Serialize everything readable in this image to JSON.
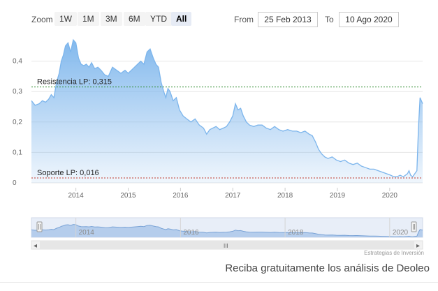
{
  "toolbar": {
    "zoom_label": "Zoom",
    "buttons": [
      {
        "label": "1W",
        "active": false
      },
      {
        "label": "1M",
        "active": false
      },
      {
        "label": "3M",
        "active": false
      },
      {
        "label": "6M",
        "active": false
      },
      {
        "label": "YTD",
        "active": false
      },
      {
        "label": "All",
        "active": true
      }
    ],
    "from_label": "From",
    "from_value": "25 Feb 2013",
    "to_label": "To",
    "to_value": "10 Ago 2020"
  },
  "chart_data": {
    "type": "area",
    "title": "",
    "xlabel": "",
    "ylabel": "",
    "xlim": [
      2013.15,
      2020.63
    ],
    "ylim": [
      0,
      0.5
    ],
    "x_ticks": [
      "2014",
      "2015",
      "2016",
      "2017",
      "2018",
      "2019",
      "2020"
    ],
    "y_ticks": [
      "0",
      "0,1",
      "0,2",
      "0,3",
      "0,4"
    ],
    "grid": true,
    "series": [
      {
        "name": "",
        "color": "#7cb5ec",
        "x": [
          2013.15,
          2013.22,
          2013.3,
          2013.36,
          2013.42,
          2013.48,
          2013.53,
          2013.58,
          2013.63,
          2013.68,
          2013.72,
          2013.76,
          2013.8,
          2013.85,
          2013.9,
          2013.95,
          2014.0,
          2014.05,
          2014.1,
          2014.15,
          2014.2,
          2014.25,
          2014.3,
          2014.36,
          2014.42,
          2014.48,
          2014.55,
          2014.62,
          2014.7,
          2014.78,
          2014.86,
          2014.94,
          2015.0,
          2015.06,
          2015.12,
          2015.18,
          2015.24,
          2015.3,
          2015.36,
          2015.42,
          2015.48,
          2015.53,
          2015.58,
          2015.63,
          2015.68,
          2015.72,
          2015.76,
          2015.8,
          2015.86,
          2015.92,
          2015.98,
          2016.05,
          2016.12,
          2016.2,
          2016.28,
          2016.36,
          2016.44,
          2016.5,
          2016.56,
          2016.62,
          2016.68,
          2016.75,
          2016.82,
          2016.88,
          2016.94,
          2017.0,
          2017.05,
          2017.1,
          2017.15,
          2017.2,
          2017.26,
          2017.32,
          2017.4,
          2017.48,
          2017.56,
          2017.64,
          2017.72,
          2017.8,
          2017.88,
          2017.96,
          2018.05,
          2018.14,
          2018.22,
          2018.3,
          2018.38,
          2018.46,
          2018.52,
          2018.58,
          2018.64,
          2018.7,
          2018.76,
          2018.82,
          2018.9,
          2018.98,
          2019.06,
          2019.14,
          2019.22,
          2019.3,
          2019.38,
          2019.46,
          2019.54,
          2019.62,
          2019.7,
          2019.78,
          2019.86,
          2019.94,
          2020.02,
          2020.08,
          2020.14,
          2020.2,
          2020.26,
          2020.3,
          2020.34,
          2020.37,
          2020.4,
          2020.44,
          2020.48,
          2020.52,
          2020.55,
          2020.58,
          2020.63
        ],
        "values": [
          0.27,
          0.255,
          0.26,
          0.27,
          0.265,
          0.275,
          0.29,
          0.28,
          0.33,
          0.36,
          0.4,
          0.42,
          0.45,
          0.46,
          0.43,
          0.47,
          0.46,
          0.41,
          0.39,
          0.385,
          0.39,
          0.38,
          0.395,
          0.375,
          0.38,
          0.37,
          0.355,
          0.35,
          0.38,
          0.37,
          0.36,
          0.37,
          0.36,
          0.37,
          0.38,
          0.39,
          0.4,
          0.39,
          0.43,
          0.44,
          0.41,
          0.39,
          0.38,
          0.33,
          0.3,
          0.28,
          0.31,
          0.3,
          0.27,
          0.28,
          0.24,
          0.22,
          0.21,
          0.2,
          0.21,
          0.19,
          0.18,
          0.16,
          0.175,
          0.18,
          0.185,
          0.175,
          0.18,
          0.185,
          0.2,
          0.22,
          0.26,
          0.24,
          0.245,
          0.22,
          0.2,
          0.19,
          0.185,
          0.19,
          0.19,
          0.18,
          0.175,
          0.185,
          0.175,
          0.17,
          0.175,
          0.17,
          0.17,
          0.165,
          0.17,
          0.16,
          0.155,
          0.135,
          0.11,
          0.095,
          0.085,
          0.08,
          0.085,
          0.075,
          0.07,
          0.075,
          0.065,
          0.06,
          0.065,
          0.055,
          0.05,
          0.045,
          0.045,
          0.04,
          0.035,
          0.03,
          0.025,
          0.02,
          0.02,
          0.025,
          0.02,
          0.025,
          0.03,
          0.04,
          0.025,
          0.02,
          0.03,
          0.04,
          0.18,
          0.28,
          0.26
        ]
      }
    ],
    "annotations": [
      {
        "label": "Resistencia LP: 0,315",
        "value": 0.315,
        "color": "#2e8b2e"
      },
      {
        "label": "Soporte LP: 0,016",
        "value": 0.016,
        "color": "#c0392b"
      }
    ],
    "navigator": {
      "x_ticks": [
        "2014",
        "2016",
        "2018",
        "2020"
      ]
    }
  },
  "scrollbar": {
    "left_arrow": "◂",
    "right_arrow": "▸",
    "grip": "III"
  },
  "credits": "Estrategias de Inversión",
  "promo_text": "Reciba gratuitamente los análisis de Deoleo"
}
